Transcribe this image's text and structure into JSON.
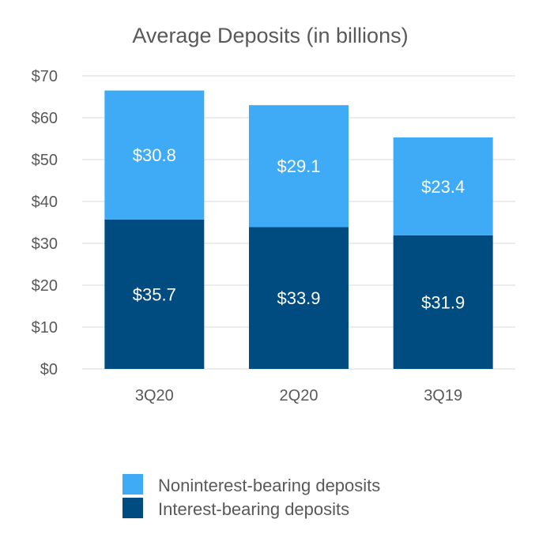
{
  "chart_data": {
    "type": "bar",
    "stacked": true,
    "title": "Average Deposits (in billions)",
    "xlabel": "",
    "ylabel": "",
    "ylim": [
      0,
      70
    ],
    "yticks": [
      0,
      10,
      20,
      30,
      40,
      50,
      60,
      70
    ],
    "ytick_labels": [
      "$0",
      "$10",
      "$20",
      "$30",
      "$40",
      "$50",
      "$60",
      "$70"
    ],
    "grid": true,
    "legend_position": "bottom",
    "categories": [
      "3Q20",
      "2Q20",
      "3Q19"
    ],
    "series": [
      {
        "name": "Interest-bearing deposits",
        "values": [
          35.7,
          33.9,
          31.9
        ],
        "labels": [
          "$35.7",
          "$33.9",
          "$31.9"
        ],
        "color": "#004b7f"
      },
      {
        "name": "Noninterest-bearing deposits",
        "values": [
          30.8,
          29.1,
          23.4
        ],
        "labels": [
          "$30.8",
          "$29.1",
          "$23.4"
        ],
        "color": "#3fabf7"
      }
    ],
    "legend_order": [
      1,
      0
    ]
  }
}
